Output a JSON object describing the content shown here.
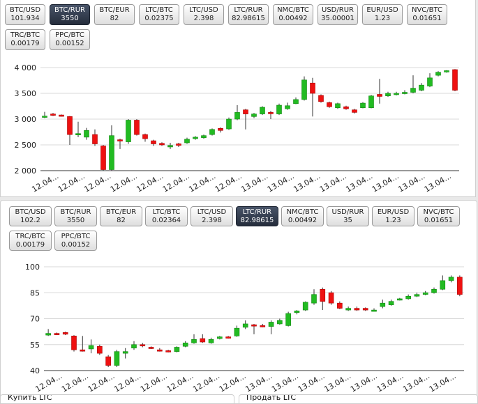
{
  "top_panel": {
    "pairs": [
      {
        "name": "BTC/USD",
        "price": "101.934",
        "active": false
      },
      {
        "name": "BTC/RUR",
        "price": "3550",
        "active": true
      },
      {
        "name": "BTC/EUR",
        "price": "82",
        "active": false
      },
      {
        "name": "LTC/BTC",
        "price": "0.02375",
        "active": false
      },
      {
        "name": "LTC/USD",
        "price": "2.398",
        "active": false
      },
      {
        "name": "LTC/RUR",
        "price": "82.98615",
        "active": false
      },
      {
        "name": "NMC/BTC",
        "price": "0.00492",
        "active": false
      },
      {
        "name": "USD/RUR",
        "price": "35.00001",
        "active": false
      },
      {
        "name": "EUR/USD",
        "price": "1.23",
        "active": false
      },
      {
        "name": "NVC/BTC",
        "price": "0.01651",
        "active": false
      },
      {
        "name": "TRC/BTC",
        "price": "0.00179",
        "active": false
      },
      {
        "name": "PPC/BTC",
        "price": "0.00152",
        "active": false
      }
    ]
  },
  "bottom_panel": {
    "pairs": [
      {
        "name": "BTC/USD",
        "price": "102.2",
        "active": false
      },
      {
        "name": "BTC/RUR",
        "price": "3550",
        "active": false
      },
      {
        "name": "BTC/EUR",
        "price": "82",
        "active": false
      },
      {
        "name": "LTC/BTC",
        "price": "0.02364",
        "active": false
      },
      {
        "name": "LTC/USD",
        "price": "2.398",
        "active": false
      },
      {
        "name": "LTC/RUR",
        "price": "82.98615",
        "active": true
      },
      {
        "name": "NMC/BTC",
        "price": "0.00492",
        "active": false
      },
      {
        "name": "USD/RUR",
        "price": "35",
        "active": false
      },
      {
        "name": "EUR/USD",
        "price": "1.23",
        "active": false
      },
      {
        "name": "NVC/BTC",
        "price": "0.01651",
        "active": false
      },
      {
        "name": "TRC/BTC",
        "price": "0.00179",
        "active": false
      },
      {
        "name": "PPC/BTC",
        "price": "0.00152",
        "active": false
      }
    ]
  },
  "footer": {
    "buy_label": "Купить LTC",
    "sell_label": "Продать LTC"
  },
  "colors": {
    "up": "#22bb22",
    "down": "#ee1111",
    "grid": "#d8d8d8",
    "axis": "#333333",
    "active_btn": "#2d3646"
  },
  "chart_data": [
    {
      "type": "candlestick",
      "pair": "BTC/RUR",
      "ylim": [
        2000,
        4000
      ],
      "yticks": [
        2000,
        2500,
        3000,
        3500,
        4000
      ],
      "ytick_labels": [
        "2 000",
        "2 500",
        "3 000",
        "3 500",
        "4 000"
      ],
      "xtick_labels": [
        "12.04...",
        "12.04...",
        "12.04...",
        "12.04...",
        "12.04...",
        "12.04...",
        "12.04...",
        "12.04...",
        "13.04...",
        "13.04...",
        "13.04...",
        "13.04...",
        "13.04...",
        "13.04...",
        "13.04...",
        "13.04..."
      ],
      "candles": [
        {
          "o": 3040,
          "c": 3060,
          "h": 3140,
          "l": 3020
        },
        {
          "o": 3100,
          "c": 3080,
          "h": 3120,
          "l": 3060
        },
        {
          "o": 3080,
          "c": 3060,
          "h": 3090,
          "l": 3050
        },
        {
          "o": 3050,
          "c": 2700,
          "h": 3060,
          "l": 2500
        },
        {
          "o": 2700,
          "c": 2720,
          "h": 2950,
          "l": 2650
        },
        {
          "o": 2650,
          "c": 2780,
          "h": 2830,
          "l": 2600
        },
        {
          "o": 2700,
          "c": 2520,
          "h": 2800,
          "l": 2480
        },
        {
          "o": 2480,
          "c": 2020,
          "h": 2500,
          "l": 2000
        },
        {
          "o": 2020,
          "c": 2680,
          "h": 2880,
          "l": 2000
        },
        {
          "o": 2600,
          "c": 2580,
          "h": 2620,
          "l": 2420
        },
        {
          "o": 2560,
          "c": 2980,
          "h": 3000,
          "l": 2520
        },
        {
          "o": 2980,
          "c": 2700,
          "h": 3000,
          "l": 2680
        },
        {
          "o": 2700,
          "c": 2620,
          "h": 2720,
          "l": 2560
        },
        {
          "o": 2580,
          "c": 2520,
          "h": 2600,
          "l": 2480
        },
        {
          "o": 2530,
          "c": 2500,
          "h": 2550,
          "l": 2480
        },
        {
          "o": 2460,
          "c": 2490,
          "h": 2540,
          "l": 2420
        },
        {
          "o": 2520,
          "c": 2490,
          "h": 2540,
          "l": 2460
        },
        {
          "o": 2540,
          "c": 2610,
          "h": 2640,
          "l": 2520
        },
        {
          "o": 2620,
          "c": 2650,
          "h": 2670,
          "l": 2600
        },
        {
          "o": 2640,
          "c": 2680,
          "h": 2700,
          "l": 2620
        },
        {
          "o": 2700,
          "c": 2800,
          "h": 2820,
          "l": 2680
        },
        {
          "o": 2820,
          "c": 2780,
          "h": 2840,
          "l": 2740
        },
        {
          "o": 2810,
          "c": 3000,
          "h": 3030,
          "l": 2790
        },
        {
          "o": 3000,
          "c": 3130,
          "h": 3270,
          "l": 2980
        },
        {
          "o": 3180,
          "c": 3100,
          "h": 3200,
          "l": 2800
        },
        {
          "o": 3050,
          "c": 3100,
          "h": 3120,
          "l": 3020
        },
        {
          "o": 3100,
          "c": 3230,
          "h": 3250,
          "l": 3080
        },
        {
          "o": 3130,
          "c": 3120,
          "h": 3160,
          "l": 3000
        },
        {
          "o": 3100,
          "c": 3270,
          "h": 3300,
          "l": 3080
        },
        {
          "o": 3200,
          "c": 3260,
          "h": 3320,
          "l": 3180
        },
        {
          "o": 3300,
          "c": 3380,
          "h": 3420,
          "l": 3290
        },
        {
          "o": 3380,
          "c": 3760,
          "h": 3830,
          "l": 3360
        },
        {
          "o": 3700,
          "c": 3500,
          "h": 3800,
          "l": 3050
        },
        {
          "o": 3460,
          "c": 3340,
          "h": 3480,
          "l": 3320
        },
        {
          "o": 3320,
          "c": 3240,
          "h": 3340,
          "l": 3220
        },
        {
          "o": 3220,
          "c": 3300,
          "h": 3320,
          "l": 3200
        },
        {
          "o": 3240,
          "c": 3200,
          "h": 3260,
          "l": 3180
        },
        {
          "o": 3180,
          "c": 3130,
          "h": 3200,
          "l": 3110
        },
        {
          "o": 3220,
          "c": 3310,
          "h": 3330,
          "l": 3210
        },
        {
          "o": 3220,
          "c": 3450,
          "h": 3470,
          "l": 3210
        },
        {
          "o": 3480,
          "c": 3440,
          "h": 3780,
          "l": 3300
        },
        {
          "o": 3450,
          "c": 3500,
          "h": 3530,
          "l": 3430
        },
        {
          "o": 3480,
          "c": 3500,
          "h": 3530,
          "l": 3460
        },
        {
          "o": 3500,
          "c": 3520,
          "h": 3560,
          "l": 3480
        },
        {
          "o": 3520,
          "c": 3600,
          "h": 3850,
          "l": 3500
        },
        {
          "o": 3560,
          "c": 3660,
          "h": 3700,
          "l": 3540
        },
        {
          "o": 3640,
          "c": 3800,
          "h": 3890,
          "l": 3620
        },
        {
          "o": 3850,
          "c": 3910,
          "h": 3930,
          "l": 3830
        },
        {
          "o": 3920,
          "c": 3940,
          "h": 3950,
          "l": 3900
        },
        {
          "o": 3960,
          "c": 3560,
          "h": 3970,
          "l": 3540
        }
      ]
    },
    {
      "type": "candlestick",
      "pair": "LTC/RUR",
      "ylim": [
        40,
        100
      ],
      "yticks": [
        40,
        55,
        70,
        85,
        100
      ],
      "ytick_labels": [
        "40",
        "55",
        "70",
        "85",
        "100"
      ],
      "xtick_labels": [
        "12.04...",
        "12.04...",
        "12.04...",
        "12.04...",
        "12.04...",
        "12.04...",
        "12.04...",
        "12.04...",
        "13.04...",
        "13.04...",
        "13.04...",
        "13.04...",
        "13.04...",
        "13.04...",
        "13.04...",
        "13.04..."
      ],
      "candles": [
        {
          "o": 60.5,
          "c": 61.5,
          "h": 64,
          "l": 60
        },
        {
          "o": 61.5,
          "c": 61,
          "h": 62,
          "l": 60.5
        },
        {
          "o": 62,
          "c": 61,
          "h": 62.5,
          "l": 60.5
        },
        {
          "o": 60,
          "c": 52,
          "h": 60.5,
          "l": 51
        },
        {
          "o": 52,
          "c": 51.5,
          "h": 60,
          "l": 51
        },
        {
          "o": 52.5,
          "c": 54.5,
          "h": 58,
          "l": 50
        },
        {
          "o": 54,
          "c": 50,
          "h": 55,
          "l": 49
        },
        {
          "o": 48,
          "c": 43,
          "h": 49,
          "l": 42
        },
        {
          "o": 43,
          "c": 51,
          "h": 52,
          "l": 42
        },
        {
          "o": 50,
          "c": 51,
          "h": 53,
          "l": 47
        },
        {
          "o": 53,
          "c": 55,
          "h": 57,
          "l": 52
        },
        {
          "o": 55,
          "c": 54.5,
          "h": 56,
          "l": 53.5
        },
        {
          "o": 53.5,
          "c": 53,
          "h": 54,
          "l": 52.5
        },
        {
          "o": 52,
          "c": 51.5,
          "h": 53,
          "l": 51
        },
        {
          "o": 51.5,
          "c": 51,
          "h": 52,
          "l": 50.5
        },
        {
          "o": 51,
          "c": 53.5,
          "h": 54,
          "l": 50.5
        },
        {
          "o": 54,
          "c": 56,
          "h": 57,
          "l": 53.5
        },
        {
          "o": 56,
          "c": 58,
          "h": 61,
          "l": 55.5
        },
        {
          "o": 58.5,
          "c": 56.5,
          "h": 61,
          "l": 56
        },
        {
          "o": 56,
          "c": 58,
          "h": 59,
          "l": 55.5
        },
        {
          "o": 58.5,
          "c": 59.5,
          "h": 60,
          "l": 58
        },
        {
          "o": 59.5,
          "c": 59,
          "h": 60,
          "l": 58.5
        },
        {
          "o": 60,
          "c": 64.5,
          "h": 66,
          "l": 59.5
        },
        {
          "o": 65,
          "c": 67,
          "h": 69,
          "l": 64
        },
        {
          "o": 66.5,
          "c": 66,
          "h": 67,
          "l": 61
        },
        {
          "o": 66,
          "c": 65.5,
          "h": 67,
          "l": 65
        },
        {
          "o": 65.5,
          "c": 68,
          "h": 69,
          "l": 61
        },
        {
          "o": 67,
          "c": 69,
          "h": 70,
          "l": 66.5
        },
        {
          "o": 66,
          "c": 73,
          "h": 74,
          "l": 65.5
        },
        {
          "o": 73.5,
          "c": 74.5,
          "h": 75,
          "l": 72.5
        },
        {
          "o": 75,
          "c": 79.5,
          "h": 80,
          "l": 74.5
        },
        {
          "o": 79,
          "c": 84,
          "h": 87,
          "l": 78
        },
        {
          "o": 87,
          "c": 80,
          "h": 88,
          "l": 75
        },
        {
          "o": 85,
          "c": 79,
          "h": 86,
          "l": 78
        },
        {
          "o": 79,
          "c": 76,
          "h": 80,
          "l": 75.5
        },
        {
          "o": 75,
          "c": 76,
          "h": 77,
          "l": 74.5
        },
        {
          "o": 76,
          "c": 75,
          "h": 77,
          "l": 74.5
        },
        {
          "o": 76,
          "c": 75,
          "h": 76.5,
          "l": 74.5
        },
        {
          "o": 75,
          "c": 75,
          "h": 76,
          "l": 74.5
        },
        {
          "o": 77,
          "c": 79,
          "h": 81,
          "l": 76
        },
        {
          "o": 78,
          "c": 80,
          "h": 81,
          "l": 77.5
        },
        {
          "o": 81,
          "c": 81.5,
          "h": 82,
          "l": 80.5
        },
        {
          "o": 81.5,
          "c": 83,
          "h": 84,
          "l": 81
        },
        {
          "o": 83,
          "c": 84,
          "h": 85,
          "l": 82.5
        },
        {
          "o": 84,
          "c": 85,
          "h": 86,
          "l": 83.5
        },
        {
          "o": 85,
          "c": 87,
          "h": 88,
          "l": 84.5
        },
        {
          "o": 87,
          "c": 92,
          "h": 95,
          "l": 86.5
        },
        {
          "o": 92,
          "c": 94,
          "h": 95,
          "l": 91
        },
        {
          "o": 94,
          "c": 84,
          "h": 95,
          "l": 83
        }
      ]
    }
  ]
}
